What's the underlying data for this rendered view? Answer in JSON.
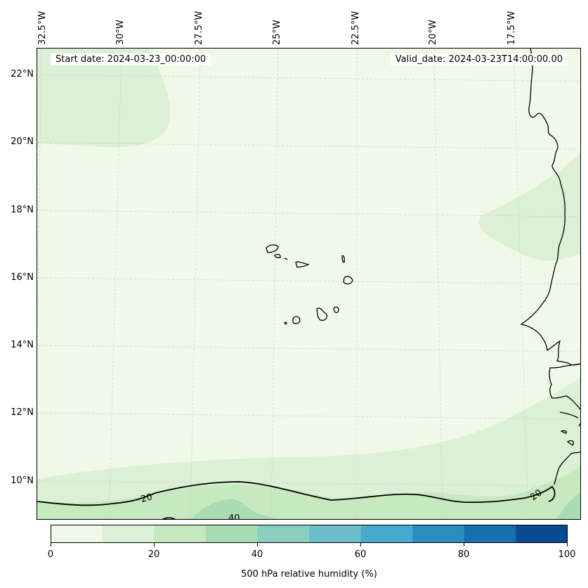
{
  "header": {
    "start_date": "Start date: 2024-03-23_00:00:00",
    "valid_date": "Valid_date: 2024-03-23T14:00:00.00"
  },
  "axes": {
    "longitude_labels": [
      "32.5°W",
      "30°W",
      "27.5°W",
      "25°W",
      "22.5°W",
      "20°W",
      "17.5°W"
    ],
    "latitude_labels": [
      "22°N",
      "20°N",
      "18°N",
      "16°N",
      "14°N",
      "12°N",
      "10°N"
    ]
  },
  "contours": {
    "labels": [
      "20",
      "40",
      "20"
    ]
  },
  "colorbar": {
    "label": "500 hPa relative humidity (%)",
    "ticks": [
      "0",
      "20",
      "40",
      "60",
      "80",
      "100"
    ],
    "levels": [
      0,
      10,
      20,
      30,
      40,
      50,
      60,
      70,
      80,
      90,
      100
    ],
    "colors": [
      "#f0f9e8",
      "#dcf0d6",
      "#c7e9c0",
      "#a9dcb4",
      "#88cfc0",
      "#6bbfcb",
      "#48a9d0",
      "#2b8cbe",
      "#1470ae",
      "#084a91"
    ]
  },
  "map_colors": {
    "coastline": "#000000",
    "gridline": "#c8c8c8"
  }
}
